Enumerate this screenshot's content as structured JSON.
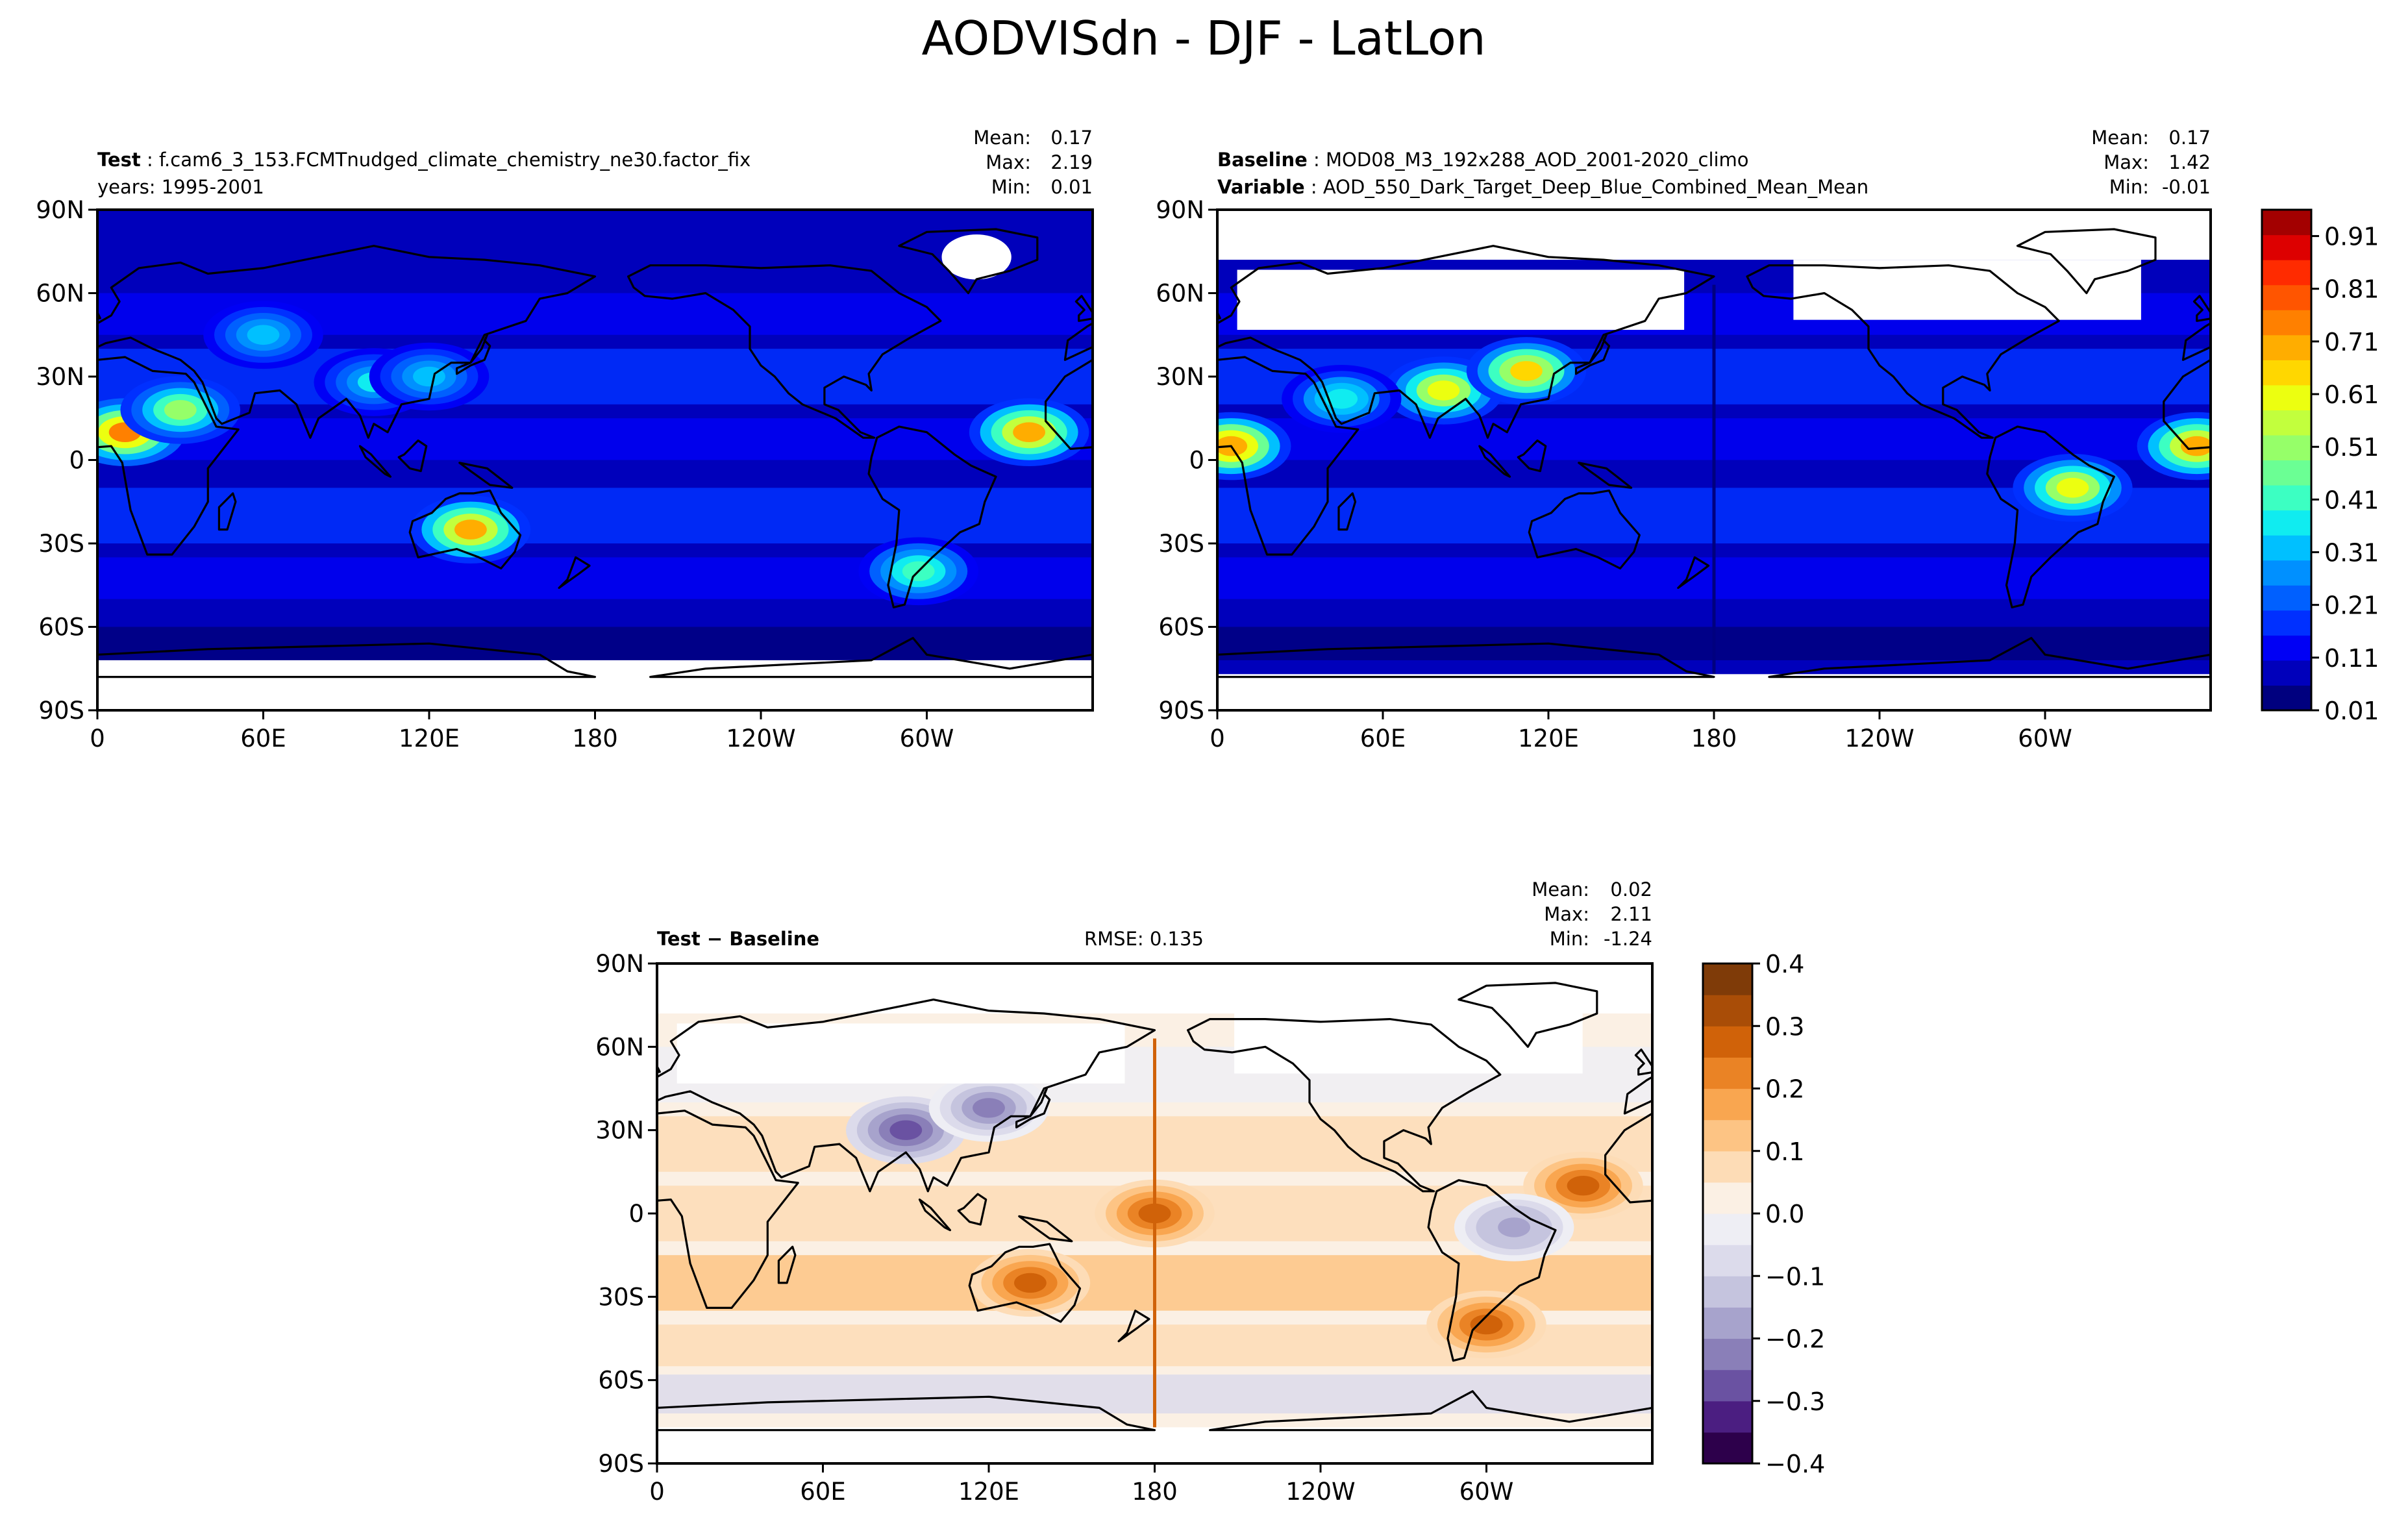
{
  "suptitle": "AODVISdn - DJF - LatLon",
  "panels": {
    "test": {
      "label_bold": "Test",
      "label_sep": " : ",
      "label_text": "f.cam6_3_153.FCMTnudged_climate_chemistry_ne30.factor_fix",
      "line2": "years: 1995-2001",
      "stats": {
        "mean_label": "Mean:",
        "mean": "0.17",
        "max_label": "Max:",
        "max": "2.19",
        "min_label": "Min:",
        "min": "0.01"
      }
    },
    "baseline": {
      "label_bold": "Baseline",
      "label_sep": " : ",
      "label_text": "MOD08_M3_192x288_AOD_2001-2020_climo",
      "line2_bold": "Variable",
      "line2_sep": " : ",
      "line2_text": "AOD_550_Dark_Target_Deep_Blue_Combined_Mean_Mean",
      "stats": {
        "mean_label": "Mean:",
        "mean": "0.17",
        "max_label": "Max:",
        "max": "1.42",
        "min_label": "Min:",
        "min": "-0.01"
      }
    },
    "diff": {
      "label_bold": "Test − Baseline",
      "rmse": "RMSE: 0.135",
      "stats": {
        "mean_label": "Mean:",
        "mean": "0.02",
        "max_label": "Max:",
        "max": "2.11",
        "min_label": "Min:",
        "min": "-1.24"
      }
    }
  },
  "axes": {
    "lat_ticks": [
      "90N",
      "60N",
      "30N",
      "0",
      "30S",
      "60S",
      "90S"
    ],
    "lon_ticks_top": [
      "0",
      "60E",
      "120E",
      "180",
      "120W",
      "60W"
    ],
    "lon_ticks_diff": [
      "0",
      "60E",
      "120E",
      "180",
      "120W",
      "60W"
    ]
  },
  "chart_data": [
    {
      "type": "heatmap",
      "title": "Test",
      "field": "AOD",
      "stats": {
        "mean": 0.17,
        "max": 2.19,
        "min": 0.01
      },
      "x_range_deg_east": [
        0,
        360
      ],
      "y_range_deg": [
        -90,
        90
      ],
      "hotspots": [
        {
          "lon": 10,
          "lat": 10,
          "value": 0.9
        },
        {
          "lon": 30,
          "lat": 18,
          "value": 0.6
        },
        {
          "lon": 135,
          "lat": -25,
          "value": 0.8
        },
        {
          "lon": 337,
          "lat": 10,
          "value": 0.8
        },
        {
          "lon": 297,
          "lat": -40,
          "value": 0.5
        },
        {
          "lon": 100,
          "lat": 28,
          "value": 0.4
        },
        {
          "lon": 60,
          "lat": 45,
          "value": 0.35
        },
        {
          "lon": 120,
          "lat": 30,
          "value": 0.35
        }
      ]
    },
    {
      "type": "heatmap",
      "title": "Baseline",
      "field": "AOD",
      "stats": {
        "mean": 0.17,
        "max": 1.42,
        "min": -0.01
      },
      "x_range_deg_east": [
        0,
        360
      ],
      "y_range_deg": [
        -90,
        90
      ],
      "hotspots": [
        {
          "lon": 5,
          "lat": 5,
          "value": 0.85
        },
        {
          "lon": 82,
          "lat": 25,
          "value": 0.7
        },
        {
          "lon": 112,
          "lat": 32,
          "value": 0.75
        },
        {
          "lon": 355,
          "lat": 5,
          "value": 0.8
        },
        {
          "lon": 310,
          "lat": -10,
          "value": 0.7
        },
        {
          "lon": 45,
          "lat": 22,
          "value": 0.45
        }
      ]
    },
    {
      "type": "heatmap",
      "title": "Test − Baseline",
      "field": "AOD difference",
      "rmse": 0.135,
      "stats": {
        "mean": 0.02,
        "max": 2.11,
        "min": -1.24
      },
      "x_range_deg_east": [
        0,
        360
      ],
      "y_range_deg": [
        -90,
        90
      ],
      "hotspots": [
        {
          "lon": 335,
          "lat": 10,
          "value": 0.35
        },
        {
          "lon": 135,
          "lat": -25,
          "value": 0.3
        },
        {
          "lon": 300,
          "lat": -40,
          "value": 0.3
        },
        {
          "lon": 180,
          "lat": 0,
          "value": 0.3
        },
        {
          "lon": 90,
          "lat": 30,
          "value": -0.3
        },
        {
          "lon": 120,
          "lat": 38,
          "value": -0.25
        },
        {
          "lon": 310,
          "lat": -5,
          "value": -0.2
        }
      ]
    }
  ],
  "colorbars": {
    "aod": {
      "ticks": [
        "0.91",
        "0.81",
        "0.71",
        "0.61",
        "0.51",
        "0.41",
        "0.31",
        "0.21",
        "0.11",
        "0.01"
      ],
      "levels_min": 0.01,
      "levels_max": 0.96,
      "colors": [
        "#00007f",
        "#0000bb",
        "#0000f5",
        "#0030ff",
        "#0060ff",
        "#0090ff",
        "#00c0ff",
        "#10ecf0",
        "#3cffc2",
        "#6bff94",
        "#96ff69",
        "#c2ff3d",
        "#ecff10",
        "#ffd700",
        "#ffad00",
        "#ff8000",
        "#ff5500",
        "#ff2b00",
        "#dd0000",
        "#a30000"
      ]
    },
    "diff": {
      "ticks": [
        "0.4",
        "0.3",
        "0.2",
        "0.1",
        "0.0",
        "−0.1",
        "−0.2",
        "−0.3",
        "−0.4"
      ],
      "levels_min": -0.4,
      "levels_max": 0.4,
      "colors": [
        "#2d004b",
        "#4b1e81",
        "#6a52a2",
        "#8a7fb8",
        "#a7a3cc",
        "#c5c4de",
        "#dcdbeb",
        "#eeeef4",
        "#fbf0e4",
        "#fddcb6",
        "#fdc484",
        "#f9a650",
        "#ea8325",
        "#d06209",
        "#a94d07",
        "#7f3b08"
      ]
    }
  }
}
